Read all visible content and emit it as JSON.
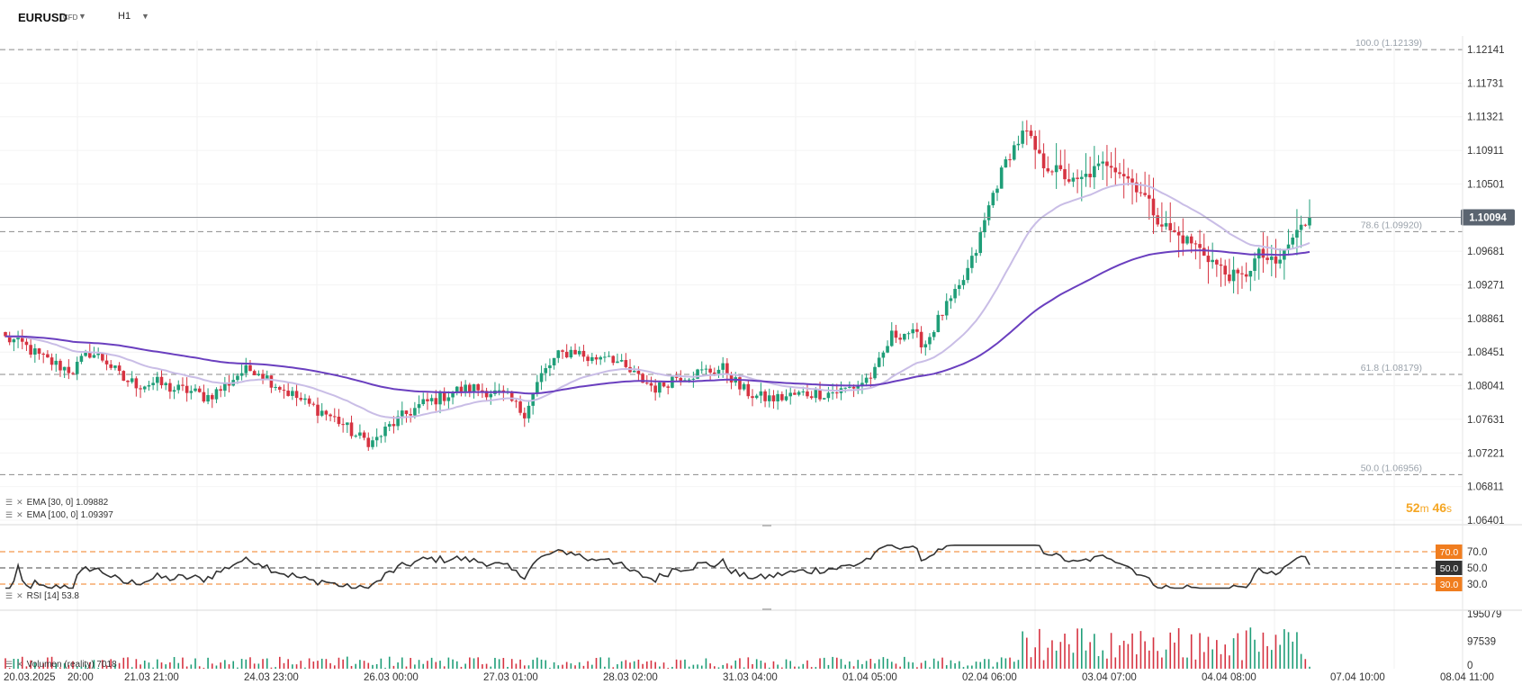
{
  "toolbar": {
    "symbol": "EURUSD",
    "instrument_type": "CFD",
    "timeframe": "H1",
    "symbol_caret_icon": "caret-down-icon",
    "timeframe_caret_icon": "caret-down-icon"
  },
  "price_axis": {
    "ticks": [
      "1.12141",
      "1.11731",
      "1.11321",
      "1.10911",
      "1.10501",
      "1.10094",
      "1.09681",
      "1.09271",
      "1.08861",
      "1.08451",
      "1.08041",
      "1.07631",
      "1.07221",
      "1.06811",
      "1.06401"
    ],
    "current_price": "1.10094"
  },
  "fib_levels": [
    {
      "label": "100.0 (1.12139)",
      "value": 1.12139
    },
    {
      "label": "78.6 (1.09920)",
      "value": 1.0992
    },
    {
      "label": "61.8 (1.08179)",
      "value": 1.08179
    },
    {
      "label": "50.0 (1.06956)",
      "value": 1.06956
    }
  ],
  "indicators": {
    "ema30": "EMA  [30,  0]  1.09882",
    "ema100": "EMA  [100,  0]  1.09397",
    "rsi": "RSI  [14]  53.8",
    "volume": "Volumen  (reality)  7018"
  },
  "candle_timer": {
    "minutes": "52",
    "minutes_unit": "m",
    "seconds": "46",
    "seconds_unit": "s"
  },
  "rsi_axis": {
    "levels": [
      "70.0",
      "50.0",
      "30.0"
    ]
  },
  "volume_axis": {
    "ticks": [
      "195079",
      "97539",
      "0"
    ]
  },
  "time_axis": {
    "labels": [
      "20.03.2025",
      "20:00",
      "21.03  21:00",
      "24.03  23:00",
      "26.03  00:00",
      "27.03  01:00",
      "28.03  02:00",
      "31.03  04:00",
      "01.04  05:00",
      "02.04  06:00",
      "03.04  07:00",
      "04.04  08:00",
      "07.04  10:00",
      "08.04  11:00"
    ]
  },
  "colors": {
    "bull": "#1f9e78",
    "bear": "#d63341",
    "ema30": "#c9bde6",
    "ema100": "#6a3fbf",
    "rsi_line": "#333333",
    "rsi_bands": "#f07d1f",
    "current_price_badge": "#5a6470",
    "timer": "#f5a623"
  },
  "chart_data": {
    "type": "candlestick",
    "symbol": "EURUSD",
    "timeframe": "H1",
    "y_range": [
      1.06401,
      1.12141
    ],
    "last_close": 1.10094,
    "fib_retracement": [
      1.12139,
      1.0992,
      1.08179,
      1.06956
    ],
    "path_closes": [
      1.0862,
      1.0855,
      1.084,
      1.083,
      1.0822,
      1.0845,
      1.0835,
      1.0812,
      1.0805,
      1.0808,
      1.08,
      1.0798,
      1.079,
      1.0801,
      1.082,
      1.0825,
      1.0808,
      1.0795,
      1.0782,
      1.0772,
      1.076,
      1.0742,
      1.0735,
      1.0755,
      1.077,
      1.0782,
      1.079,
      1.0798,
      1.0801,
      1.0797,
      1.079,
      1.077,
      1.0815,
      1.084,
      1.0848,
      1.0835,
      1.0845,
      1.0825,
      1.0812,
      1.08,
      1.0815,
      1.0818,
      1.0822,
      1.0825,
      1.08,
      1.079,
      1.0788,
      1.0792,
      1.0795,
      1.0795,
      1.0798,
      1.0805,
      1.082,
      1.0865,
      1.087,
      1.0855,
      1.0892,
      1.092,
      1.0965,
      1.1035,
      1.1085,
      1.1115,
      1.1075,
      1.1065,
      1.105,
      1.1065,
      1.1078,
      1.106,
      1.104,
      1.1005,
      1.0988,
      1.0978,
      1.096,
      1.094,
      1.0935,
      1.0965,
      1.095,
      1.0985,
      1.1009
    ],
    "ema30_last": 1.09882,
    "ema100_last": 1.09397,
    "rsi": {
      "period": 14,
      "last": 53.8,
      "levels": [
        70,
        50,
        30
      ]
    },
    "volume": {
      "axis_max": 195079,
      "axis_mid": 97539,
      "last": 7018
    }
  }
}
